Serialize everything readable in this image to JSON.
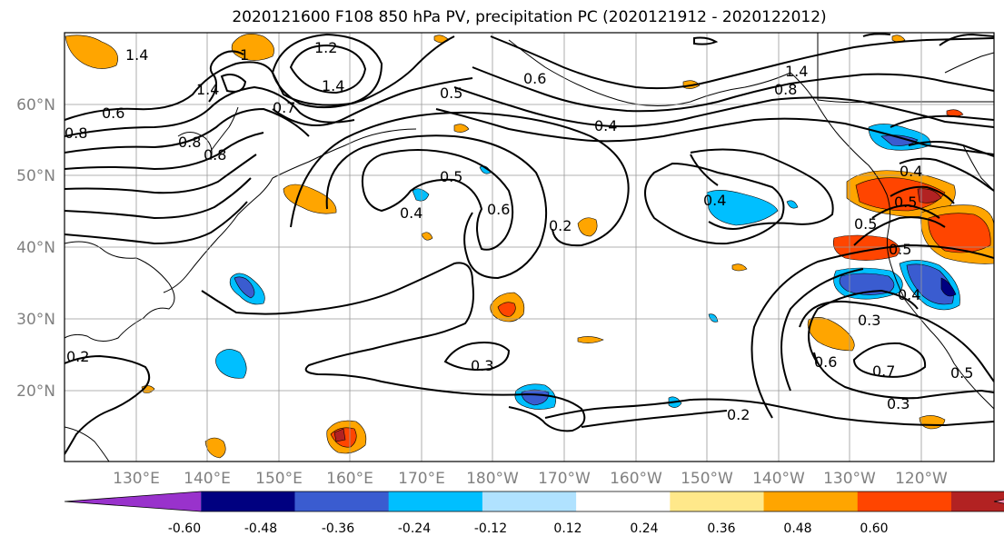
{
  "title": "2020121600 F108 850 hPa PV, precipitation PC (2020121912 - 2020122012)",
  "lat_labels": [
    "60°N",
    "50°N",
    "40°N",
    "30°N",
    "20°N"
  ],
  "lon_labels": [
    "130°E",
    "140°E",
    "150°E",
    "160°E",
    "170°E",
    "180°W",
    "170°W",
    "160°W",
    "150°W",
    "140°W",
    "130°W",
    "120°W"
  ],
  "contour_labels": [
    "1.2",
    "1.4",
    "1.4",
    "1",
    "1.4",
    "0.7",
    "0.8",
    "0.6",
    "0.8",
    "0.8",
    "0.5",
    "0.6",
    "0.4",
    "0.5",
    "0.4",
    "0.6",
    "0.2",
    "0.3",
    "0.4",
    "1.4",
    "0.8",
    "0.4",
    "0.5",
    "0.5",
    "0.5",
    "0.4",
    "0.3",
    "0.6",
    "0.7",
    "0.5",
    "0.3",
    "0.2",
    "0.2"
  ],
  "colorbar": {
    "tick_labels": [
      "-0.60",
      "-0.48",
      "-0.36",
      "-0.24",
      "-0.12",
      "0.12",
      "0.24",
      "0.36",
      "0.48",
      "0.60"
    ],
    "colors": [
      "#9932cc",
      "#000080",
      "#3a5cd0",
      "#00bfff",
      "#b0e2ff",
      "#ffffff",
      "#ffe88a",
      "#ffa500",
      "#ff4500",
      "#b22222",
      "#ff88aa"
    ]
  },
  "line_color": "#000000",
  "grid_color": "#999999"
}
